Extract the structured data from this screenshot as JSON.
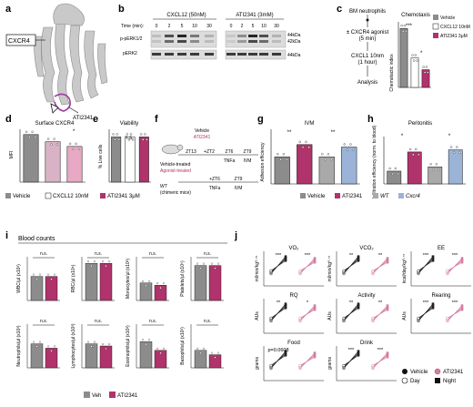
{
  "panel_labels": [
    "a",
    "b",
    "c",
    "d",
    "e",
    "f",
    "g",
    "h",
    "i",
    "j"
  ],
  "colors": {
    "vehicle": "#8c8c8c",
    "cxcl12": "#ffffff",
    "ati2341": "#b0336b",
    "ati_light": "#e7a9c4",
    "wt": "#a9a9a9",
    "cxcr4": "#9ab3d6",
    "line_day": "#222222",
    "line_ati": "#d57da3"
  },
  "a": {
    "receptor_label": "CXCR4",
    "ligand_label": "ATI2341"
  },
  "b": {
    "left_title": "CXCL12 (50nM)",
    "right_title": "ATI2341 (3mM)",
    "time_label": "Time (min):",
    "left_times": [
      "0",
      "2",
      "5",
      "10",
      "30"
    ],
    "right_times": [
      "0",
      "2",
      "5",
      "10",
      "30"
    ],
    "rows": [
      "p-pERK1/2",
      "pERK2"
    ],
    "mw_top": [
      "44kDa",
      "42kDa"
    ],
    "mw_bottom": "44kDa"
  },
  "c": {
    "flow": [
      "BM neutrophils",
      "± CXCR4 agonist",
      "(5 min)",
      "CXCL1 10nm",
      "(1 hour)",
      "Analysis"
    ],
    "title": "Chemotaxis",
    "legend": [
      "Vehicle",
      "CXCL12 10nM",
      "ATI2341 3μM"
    ],
    "ylabel": "Chemotactic index",
    "sig": [
      "***",
      "*"
    ]
  },
  "d": {
    "title": "Surface CXCR4",
    "ylabel": "MFI",
    "sig": "*"
  },
  "e": {
    "title": "Viability",
    "ylabel": "% Live cells",
    "sig": "n.s."
  },
  "legend_de": [
    "Vehicle",
    "CXCL12 10nM",
    "ATI2341 3μM"
  ],
  "f": {
    "vehicle_label": "Vehicle",
    "ati_label": "ATI2341",
    "steps1": [
      "ZT13",
      "+ZT2",
      "ZT6",
      "ZT9"
    ],
    "sub1": [
      "TNFa",
      "IVM"
    ],
    "veh_treated": "Vehicle-treated",
    "ago_treated": "Agonist-treated",
    "steps2": [
      "+ZT6",
      "ZT9"
    ],
    "sub2": [
      "TNFa",
      "IVM"
    ],
    "wt_label": "WT",
    "chimeric": "(chimeric mice)"
  },
  "g": {
    "title": "IVM",
    "ylabel": "Adhesion efficiency",
    "sig": [
      "**",
      "**"
    ]
  },
  "h": {
    "title": "Peritonitis",
    "ylabel": "Infiltration efficiency (norm. to blood)",
    "sig": [
      "*",
      "*"
    ]
  },
  "legend_gh": [
    "Vehicle",
    "ATI2341",
    "WT",
    "Cxcr4"
  ],
  "i": {
    "title": "Blood counts",
    "panels": [
      {
        "ylabel": "WBC/µl (x10³)",
        "sig": "n.s."
      },
      {
        "ylabel": "RBC/µl (x10⁶)",
        "sig": "n.s."
      },
      {
        "ylabel": "Monocytes/µl (x10³)",
        "sig": "n.s."
      },
      {
        "ylabel": "Platelets/µl (x10⁵)",
        "sig": "n.s."
      },
      {
        "ylabel": "Neutrophils/µl (x10³)",
        "sig": "n.s."
      },
      {
        "ylabel": "Lymphocytes/µl (x10³)",
        "sig": "n.s."
      },
      {
        "ylabel": "Eosinophils/µl (x10³)",
        "sig": "n.s."
      },
      {
        "ylabel": "Basophils/µl (x10³)",
        "sig": "n.s."
      }
    ],
    "legend": [
      "Veh",
      "ATI2341"
    ]
  },
  "j": {
    "panels": [
      {
        "title": "VO₂",
        "ylabel": "ml/min/kg⁰·⁷⁵",
        "sig": [
          "***",
          "***"
        ]
      },
      {
        "title": "VCO₂",
        "ylabel": "ml/min/kg⁰·⁷⁵",
        "sig": [
          "**",
          "**"
        ]
      },
      {
        "title": "EE",
        "ylabel": "kcal/day/kg⁰·⁷⁵",
        "sig": [
          "***",
          "***"
        ]
      },
      {
        "title": "RQ",
        "ylabel": "AUs",
        "sig": [
          "**",
          "*"
        ]
      },
      {
        "title": "Activity",
        "ylabel": "AUs",
        "sig": [
          "**",
          "**"
        ]
      },
      {
        "title": "Rearing",
        "ylabel": "AUs",
        "sig": [
          "***",
          "***"
        ]
      },
      {
        "title": "Food",
        "ylabel": "grams",
        "sig": [
          "p=0.0608"
        ]
      },
      {
        "title": "Drink",
        "ylabel": "grams",
        "sig": [
          "***",
          "***"
        ]
      }
    ],
    "legend": [
      "Vehicle",
      "ATI2341",
      "Day",
      "Night"
    ]
  },
  "chart_data": [
    {
      "type": "bar",
      "panel": "c",
      "categories": [
        "Vehicle",
        "CXCL12 10nM",
        "ATI2341 3μM"
      ],
      "values": [
        1.0,
        0.5,
        0.3
      ],
      "ylabel": "Chemotactic index"
    },
    {
      "type": "bar",
      "panel": "d",
      "categories": [
        "Vehicle",
        "CXCL12 10nM",
        "ATI2341 3μM"
      ],
      "values": [
        1.0,
        0.85,
        0.75
      ],
      "ylabel": "MFI"
    },
    {
      "type": "bar",
      "panel": "e",
      "categories": [
        "Vehicle",
        "CXCL12 10nM",
        "ATI2341 3μM"
      ],
      "values": [
        0.95,
        0.95,
        0.95
      ],
      "ylabel": "% Live cells"
    },
    {
      "type": "bar",
      "panel": "g",
      "categories": [
        "Vehicle",
        "ATI2341",
        "WT",
        "Cxcr4"
      ],
      "values": [
        0.55,
        0.8,
        0.55,
        0.75
      ],
      "ylabel": "Adhesion efficiency"
    },
    {
      "type": "bar",
      "panel": "h",
      "categories": [
        "Vehicle",
        "ATI2341",
        "WT",
        "Cxcr4"
      ],
      "values": [
        0.3,
        0.75,
        0.4,
        0.8
      ],
      "ylabel": "Infiltration efficiency"
    },
    {
      "type": "bar",
      "panel": "i",
      "categories": [
        "Veh",
        "ATI2341"
      ],
      "series": [
        {
          "name": "WBC",
          "values": [
            0.55,
            0.55
          ]
        },
        {
          "name": "RBC",
          "values": [
            0.85,
            0.85
          ]
        },
        {
          "name": "Monocytes",
          "values": [
            0.4,
            0.35
          ]
        },
        {
          "name": "Platelets",
          "values": [
            0.8,
            0.8
          ]
        },
        {
          "name": "Neutrophils",
          "values": [
            0.55,
            0.45
          ]
        },
        {
          "name": "Lymphocytes",
          "values": [
            0.55,
            0.5
          ]
        },
        {
          "name": "Eosinophils",
          "values": [
            0.6,
            0.4
          ]
        },
        {
          "name": "Basophils",
          "values": [
            0.4,
            0.3
          ]
        }
      ]
    },
    {
      "type": "line",
      "panel": "j",
      "x": [
        "Day",
        "Night"
      ],
      "series": [
        {
          "name": "Vehicle",
          "values": [
            0.35,
            0.85
          ]
        },
        {
          "name": "ATI2341",
          "values": [
            0.35,
            0.8
          ]
        }
      ]
    }
  ]
}
